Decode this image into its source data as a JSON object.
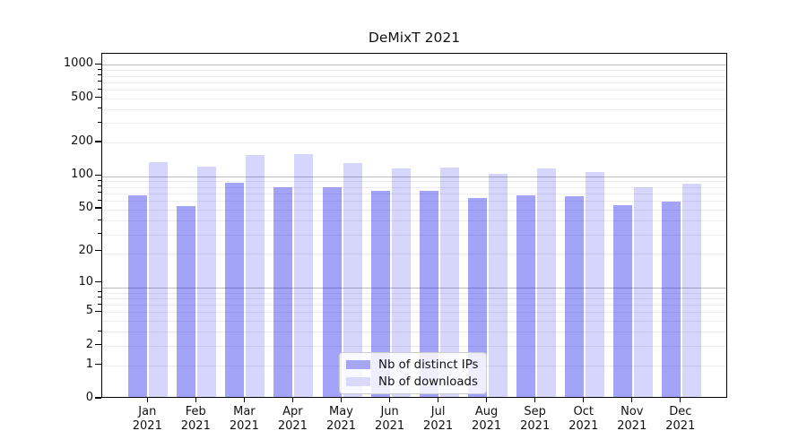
{
  "chart_data": {
    "type": "bar",
    "title": "DeMixT 2021",
    "year_label": "2021",
    "categories": [
      "Jan",
      "Feb",
      "Mar",
      "Apr",
      "May",
      "Jun",
      "Jul",
      "Aug",
      "Sep",
      "Oct",
      "Nov",
      "Dec"
    ],
    "series": [
      {
        "name": "Nb of distinct IPs",
        "values": [
          64,
          51,
          83,
          76,
          75,
          70,
          70,
          60,
          64,
          63,
          52,
          56
        ]
      },
      {
        "name": "Nb of downloads",
        "values": [
          128,
          116,
          148,
          152,
          126,
          113,
          115,
          101,
          113,
          105,
          76,
          82
        ]
      }
    ],
    "xlabel": "",
    "ylabel": "",
    "yticks": [
      1000,
      500,
      200,
      100,
      50,
      20,
      10,
      5,
      2,
      1,
      0
    ],
    "yscale": "log(value+1)",
    "ylim": [
      0,
      1258
    ],
    "grid": true,
    "legend_position": "lower center"
  },
  "colors": {
    "bar_dark_rgba": "rgba(0,0,235,0.36)",
    "bar_light_rgba": "rgba(0,0,235,0.16)",
    "bar_dark_solid": "#a6a6f7",
    "bar_light_solid": "#d9d9fb",
    "grid_major": "#bcbcbc",
    "grid_minor": "#ececec",
    "spine": "#000000",
    "legend_border": "#cccccc"
  }
}
